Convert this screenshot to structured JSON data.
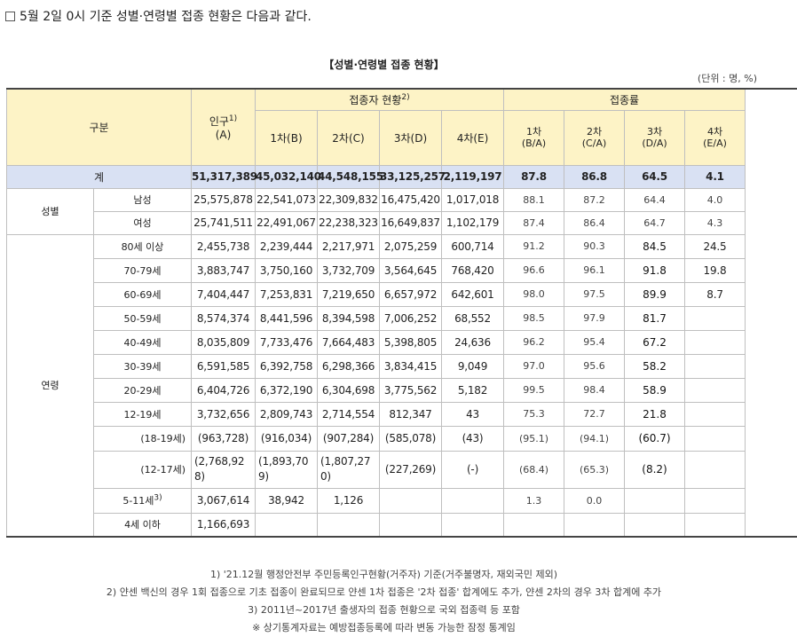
{
  "headline": "5월 2일 0시 기준 성별·연령별 접종 현황은 다음과 같다.",
  "table_title": "【성별·연령별 접종 현황】",
  "unit": "(단위 : 명, %)",
  "header": {
    "category": "구분",
    "population": "인구",
    "population_sup": "1)",
    "population_sub": "(A)",
    "vaccinated_group": "접종자 현황",
    "vaccinated_sup": "2)",
    "rate_group": "접종률",
    "dose_cols": [
      "1차(B)",
      "2차(C)",
      "3차(D)",
      "4차(E)"
    ],
    "rate_cols": [
      {
        "top": "1차",
        "bottom": "(B/A)"
      },
      {
        "top": "2차",
        "bottom": "(C/A)"
      },
      {
        "top": "3차",
        "bottom": "(D/A)"
      },
      {
        "top": "4차",
        "bottom": "(E/A)"
      }
    ]
  },
  "total": {
    "label": "계",
    "values": [
      "51,317,389",
      "45,032,140",
      "44,548,155",
      "33,125,257",
      "2,119,197"
    ],
    "rates": [
      "87.8",
      "86.8",
      "64.5",
      "4.1"
    ]
  },
  "sex": {
    "group_label": "성별",
    "rows": [
      {
        "label": "남성",
        "values": [
          "25,575,878",
          "22,541,073",
          "22,309,832",
          "16,475,420",
          "1,017,018"
        ],
        "rates": [
          "88.1",
          "87.2",
          "64.4",
          "4.0"
        ]
      },
      {
        "label": "여성",
        "values": [
          "25,741,511",
          "22,491,067",
          "22,238,323",
          "16,649,837",
          "1,102,179"
        ],
        "rates": [
          "87.4",
          "86.4",
          "64.7",
          "4.3"
        ]
      }
    ]
  },
  "age": {
    "group_label": "연령",
    "rows": [
      {
        "label": "80세 이상",
        "values": [
          "2,455,738",
          "2,239,444",
          "2,217,971",
          "2,075,259",
          "600,714"
        ],
        "rates": [
          "91.2",
          "90.3",
          "84.5",
          "24.5"
        ]
      },
      {
        "label": "70-79세",
        "values": [
          "3,883,747",
          "3,750,160",
          "3,732,709",
          "3,564,645",
          "768,420"
        ],
        "rates": [
          "96.6",
          "96.1",
          "91.8",
          "19.8"
        ]
      },
      {
        "label": "60-69세",
        "values": [
          "7,404,447",
          "7,253,831",
          "7,219,650",
          "6,657,972",
          "642,601"
        ],
        "rates": [
          "98.0",
          "97.5",
          "89.9",
          "8.7"
        ]
      },
      {
        "label": "50-59세",
        "values": [
          "8,574,374",
          "8,441,596",
          "8,394,598",
          "7,006,252",
          "68,552"
        ],
        "rates": [
          "98.5",
          "97.9",
          "81.7",
          ""
        ]
      },
      {
        "label": "40-49세",
        "values": [
          "8,035,809",
          "7,733,476",
          "7,664,483",
          "5,398,805",
          "24,636"
        ],
        "rates": [
          "96.2",
          "95.4",
          "67.2",
          ""
        ]
      },
      {
        "label": "30-39세",
        "values": [
          "6,591,585",
          "6,392,758",
          "6,298,366",
          "3,834,415",
          "9,049"
        ],
        "rates": [
          "97.0",
          "95.6",
          "58.2",
          ""
        ]
      },
      {
        "label": "20-29세",
        "values": [
          "6,404,726",
          "6,372,190",
          "6,304,698",
          "3,775,562",
          "5,182"
        ],
        "rates": [
          "99.5",
          "98.4",
          "58.9",
          ""
        ]
      },
      {
        "label": "12-19세",
        "values": [
          "3,732,656",
          "2,809,743",
          "2,714,554",
          "812,347",
          "43"
        ],
        "rates": [
          "75.3",
          "72.7",
          "21.8",
          ""
        ]
      }
    ],
    "sub_rows": [
      {
        "label": "(18-19세)",
        "values": [
          "(963,728)",
          "(916,034)",
          "(907,284)",
          "(585,078)",
          "(43)"
        ],
        "rates": [
          "(95.1)",
          "(94.1)",
          "(60.7)",
          ""
        ]
      },
      {
        "label": "(12-17세)",
        "values": [
          "(2,768,928)",
          "(1,893,709)",
          "(1,807,270)",
          "(227,269)",
          "(-)"
        ],
        "rates": [
          "(68.4)",
          "(65.3)",
          "(8.2)",
          ""
        ]
      }
    ],
    "child_row": {
      "label": "5-11세",
      "label_sup": "3)",
      "values": [
        "3,067,614",
        "38,942",
        "1,126",
        "",
        ""
      ],
      "rates": [
        "1.3",
        "0.0",
        "",
        ""
      ]
    },
    "infant_row": {
      "label": "4세 이하",
      "values": [
        "1,166,693",
        "",
        "",
        "",
        ""
      ],
      "rates": [
        "",
        "",
        "",
        ""
      ]
    }
  },
  "notes": [
    "1) '21.12월 행정안전부 주민등록인구현황(거주자) 기준(거주불명자, 재외국민 제외)",
    "2) 얀센 백신의 경우 1회 접종으로 기초 접종이 완료되므로 얀센 1차 접종은 '2차 접종' 합계에도 추가, 얀센 2차의 경우 3차 합계에 추가",
    "3) 2011년~2017년 출생자의 접종 현황으로 국외 접종력 등 포함",
    "※ 상기통계자료는 예방접종등록에 따라 변동 가능한 잠정 통계임"
  ]
}
